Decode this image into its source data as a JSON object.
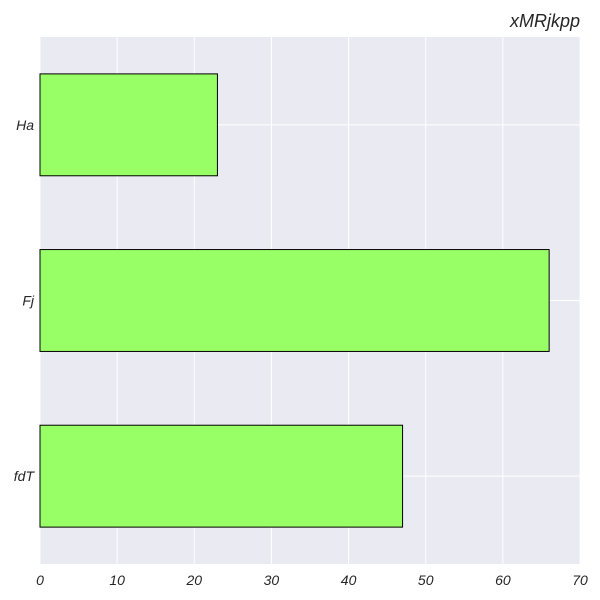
{
  "chart_data": {
    "type": "bar",
    "orientation": "horizontal",
    "title": "xMRjkpp",
    "xlabel": "",
    "ylabel": "",
    "categories": [
      "Ha",
      "Fj",
      "fdT"
    ],
    "values": [
      23,
      66,
      47
    ],
    "xlim": [
      0,
      70
    ],
    "xticks": [
      0,
      10,
      20,
      30,
      40,
      50,
      60,
      70
    ],
    "grid": true,
    "colors": {
      "bar_fill": "#99ff66",
      "bar_edge": "#000000",
      "plot_background": "#eaeaf2",
      "grid": "#ffffff"
    }
  }
}
